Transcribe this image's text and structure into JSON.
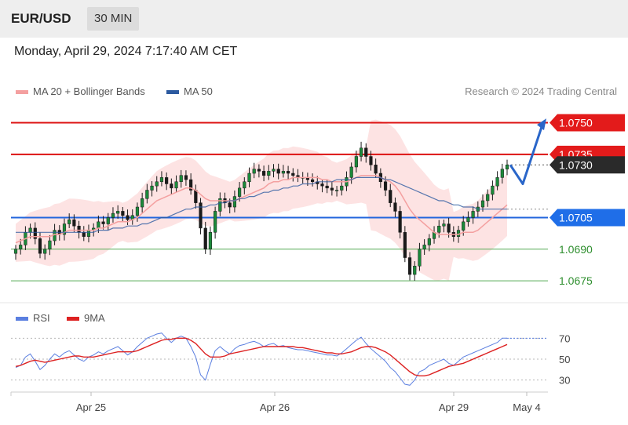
{
  "header": {
    "symbol": "EUR/USD",
    "timeframe": "30 MIN",
    "datetime": "Monday, April 29, 2024 7:17:40 AM CET"
  },
  "legend": {
    "items": [
      {
        "label": "MA 20 + Bollinger Bands",
        "color": "#f4a0a0"
      },
      {
        "label": "MA 50",
        "color": "#2c5aa0"
      }
    ],
    "copyright": "Research © 2024 Trading Central"
  },
  "rsi_legend": {
    "items": [
      {
        "label": "RSI",
        "color": "#5b7fe0"
      },
      {
        "label": "9MA",
        "color": "#dd2222"
      }
    ]
  },
  "chart_data": [
    {
      "type": "candlestick",
      "ylim": [
        1.0665,
        1.0758
      ],
      "x_ticks": [
        "Apr 25",
        "Apr 26",
        "Apr 29",
        "May 4"
      ],
      "price_levels": [
        {
          "value": 1.075,
          "label": "1.0750",
          "kind": "resistance"
        },
        {
          "value": 1.0735,
          "label": "1.0735",
          "kind": "resistance"
        },
        {
          "value": 1.073,
          "label": "1.0730",
          "kind": "last"
        },
        {
          "value": 1.0705,
          "label": "1.0705",
          "kind": "pivot"
        },
        {
          "value": 1.069,
          "label": "1.0690",
          "kind": "support"
        },
        {
          "value": 1.0675,
          "label": "1.0675",
          "kind": "support"
        }
      ],
      "forecast": [
        1.073,
        1.0721,
        1.0748
      ],
      "close": [
        1.069,
        1.0692,
        1.0698,
        1.07,
        1.0695,
        1.0688,
        1.069,
        1.0694,
        1.0699,
        1.0697,
        1.0702,
        1.0704,
        1.0701,
        1.0698,
        1.0696,
        1.0699,
        1.07,
        1.0703,
        1.0702,
        1.0705,
        1.0707,
        1.0708,
        1.0706,
        1.0704,
        1.0706,
        1.071,
        1.0714,
        1.0718,
        1.072,
        1.0722,
        1.0724,
        1.0721,
        1.0719,
        1.0722,
        1.0725,
        1.0723,
        1.0718,
        1.0712,
        1.07,
        1.069,
        1.0698,
        1.0708,
        1.0714,
        1.0712,
        1.071,
        1.0715,
        1.0719,
        1.0722,
        1.0726,
        1.0728,
        1.0727,
        1.0725,
        1.0727,
        1.0728,
        1.0726,
        1.0727,
        1.0726,
        1.0725,
        1.0724,
        1.0724,
        1.0723,
        1.0722,
        1.0721,
        1.072,
        1.0719,
        1.0718,
        1.0718,
        1.072,
        1.0724,
        1.0729,
        1.0734,
        1.0738,
        1.0734,
        1.073,
        1.0726,
        1.0722,
        1.0718,
        1.0712,
        1.0708,
        1.0698,
        1.0686,
        1.0678,
        1.0682,
        1.069,
        1.0692,
        1.0695,
        1.0698,
        1.0701,
        1.0702,
        1.0698,
        1.0696,
        1.0699,
        1.0703,
        1.0705,
        1.0708,
        1.071,
        1.0713,
        1.0716,
        1.072,
        1.0724,
        1.0728,
        1.073
      ],
      "ma20": [
        1.0693,
        1.0694,
        1.0695,
        1.0696,
        1.0696,
        1.0696,
        1.0696,
        1.0696,
        1.0697,
        1.0697,
        1.0698,
        1.0699,
        1.0699,
        1.0699,
        1.0699,
        1.0699,
        1.0699,
        1.07,
        1.07,
        1.0701,
        1.0702,
        1.0703,
        1.0703,
        1.0703,
        1.0704,
        1.0705,
        1.0707,
        1.0709,
        1.0711,
        1.0713,
        1.0714,
        1.0715,
        1.0716,
        1.0717,
        1.0718,
        1.0719,
        1.0719,
        1.0718,
        1.0716,
        1.0714,
        1.0713,
        1.0713,
        1.0713,
        1.0713,
        1.0713,
        1.0713,
        1.0714,
        1.0715,
        1.0716,
        1.0717,
        1.0718,
        1.0719,
        1.0721,
        1.0722,
        1.0722,
        1.0723,
        1.0723,
        1.0724,
        1.0724,
        1.0724,
        1.0724,
        1.0724,
        1.0724,
        1.0723,
        1.0723,
        1.0722,
        1.0722,
        1.0722,
        1.0722,
        1.0723,
        1.0724,
        1.0725,
        1.0725,
        1.0725,
        1.0725,
        1.0724,
        1.0723,
        1.0722,
        1.072,
        1.0717,
        1.0713,
        1.0709,
        1.0706,
        1.0704,
        1.0702,
        1.07,
        1.0698,
        1.0697,
        1.0697,
        1.0697,
        1.0697,
        1.0697,
        1.0698,
        1.0698,
        1.0698,
        1.0699,
        1.0701,
        1.0703,
        1.0705,
        1.0707,
        1.0709,
        1.0711
      ],
      "ma50": [
        1.0698,
        1.0698,
        1.0698,
        1.0698,
        1.0698,
        1.0698,
        1.0698,
        1.0698,
        1.0698,
        1.0698,
        1.0698,
        1.0698,
        1.0698,
        1.0698,
        1.0698,
        1.0698,
        1.0698,
        1.0699,
        1.0699,
        1.0699,
        1.07,
        1.07,
        1.07,
        1.0701,
        1.0701,
        1.0701,
        1.0702,
        1.0702,
        1.0703,
        1.0704,
        1.0705,
        1.0705,
        1.0706,
        1.0707,
        1.0708,
        1.0709,
        1.0709,
        1.071,
        1.071,
        1.071,
        1.0711,
        1.0711,
        1.0712,
        1.0712,
        1.0713,
        1.0713,
        1.0714,
        1.0714,
        1.0715,
        1.0715,
        1.0716,
        1.0717,
        1.0717,
        1.0718,
        1.0718,
        1.0719,
        1.0719,
        1.072,
        1.072,
        1.0721,
        1.0721,
        1.0721,
        1.0722,
        1.0722,
        1.0722,
        1.0722,
        1.0723,
        1.0723,
        1.0723,
        1.0723,
        1.0724,
        1.0724,
        1.0724,
        1.0724,
        1.0724,
        1.0724,
        1.0723,
        1.0723,
        1.0722,
        1.0721,
        1.072,
        1.0719,
        1.0718,
        1.0717,
        1.0716,
        1.0715,
        1.0714,
        1.0713,
        1.0713,
        1.0712,
        1.0711,
        1.0711,
        1.071,
        1.071,
        1.071,
        1.0709,
        1.0709,
        1.0709,
        1.0709,
        1.0709,
        1.0709,
        1.0709
      ]
    },
    {
      "type": "line",
      "ylim": [
        20,
        80
      ],
      "y_ticks": [
        30,
        50,
        70
      ],
      "series": [
        {
          "name": "RSI",
          "color": "#5b7fe0",
          "values": [
            42,
            44,
            52,
            55,
            48,
            40,
            44,
            50,
            55,
            52,
            56,
            58,
            54,
            50,
            48,
            52,
            54,
            57,
            55,
            58,
            60,
            62,
            58,
            54,
            57,
            62,
            66,
            70,
            72,
            74,
            75,
            70,
            66,
            70,
            72,
            70,
            62,
            52,
            35,
            30,
            45,
            58,
            62,
            58,
            55,
            60,
            63,
            64,
            66,
            67,
            65,
            62,
            64,
            65,
            62,
            63,
            61,
            60,
            59,
            59,
            58,
            57,
            56,
            55,
            54,
            54,
            53,
            56,
            60,
            64,
            68,
            71,
            65,
            60,
            56,
            52,
            48,
            42,
            38,
            32,
            26,
            25,
            30,
            38,
            40,
            44,
            46,
            48,
            50,
            46,
            44,
            48,
            52,
            54,
            56,
            58,
            60,
            62,
            64,
            66,
            70,
            70
          ]
        },
        {
          "name": "9MA",
          "color": "#dd2222",
          "values": [
            43,
            44,
            46,
            48,
            49,
            48,
            47,
            48,
            49,
            50,
            51,
            52,
            53,
            53,
            52,
            52,
            52,
            53,
            54,
            55,
            56,
            57,
            57,
            57,
            57,
            58,
            60,
            62,
            64,
            66,
            68,
            69,
            69,
            70,
            70,
            70,
            68,
            65,
            60,
            55,
            52,
            52,
            52,
            53,
            55,
            56,
            57,
            58,
            59,
            60,
            61,
            62,
            62,
            62,
            62,
            62,
            62,
            62,
            61,
            61,
            60,
            59,
            58,
            57,
            56,
            56,
            55,
            55,
            56,
            57,
            59,
            61,
            62,
            62,
            61,
            59,
            57,
            54,
            50,
            46,
            42,
            38,
            35,
            34,
            34,
            35,
            37,
            39,
            41,
            43,
            44,
            45,
            46,
            48,
            50,
            52,
            54,
            56,
            58,
            60,
            62,
            64
          ]
        }
      ]
    }
  ]
}
